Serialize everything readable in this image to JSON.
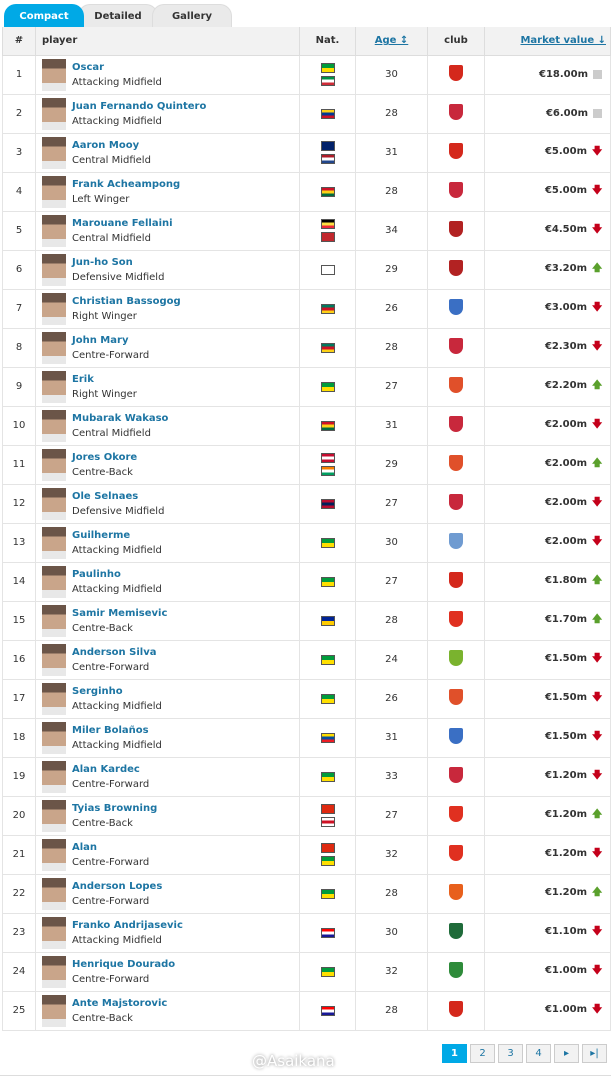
{
  "tabs": [
    "Compact",
    "Detailed",
    "Gallery"
  ],
  "headers": {
    "num": "#",
    "player": "player",
    "nat": "Nat.",
    "age": "Age ↕",
    "club": "club",
    "mv": "Market value ↓"
  },
  "flag_colors": {
    "BR": [
      "#009c3b",
      "#ffdf00"
    ],
    "IT": [
      "#009246",
      "#fff",
      "#ce2b37"
    ],
    "CO": [
      "#fcd116",
      "#003893",
      "#ce1126"
    ],
    "AU": [
      "#012169",
      "#012169"
    ],
    "NL": [
      "#ae1c28",
      "#fff",
      "#21468b"
    ],
    "GH": [
      "#ce1126",
      "#fcd116",
      "#006b3f"
    ],
    "BE": [
      "#000",
      "#fae042",
      "#ed2939"
    ],
    "MA": [
      "#c1272d",
      "#c1272d"
    ],
    "KR": [
      "#fff",
      "#fff"
    ],
    "CM": [
      "#007a5e",
      "#ce1126",
      "#fcd116"
    ],
    "DK": [
      "#c60c30",
      "#fff",
      "#c60c30"
    ],
    "CI": [
      "#f77f00",
      "#fff",
      "#009e60"
    ],
    "NO": [
      "#ba0c2f",
      "#00205b",
      "#ba0c2f"
    ],
    "BA": [
      "#002395",
      "#fecb00"
    ],
    "EC": [
      "#ffdd00",
      "#034ea2",
      "#ed1c24"
    ],
    "CN": [
      "#de2910",
      "#de2910"
    ],
    "EN": [
      "#fff",
      "#ce1124",
      "#fff"
    ],
    "HR": [
      "#ff0000",
      "#fff",
      "#171796"
    ]
  },
  "rows": [
    {
      "n": "1",
      "name": "Oscar",
      "pos": "Attacking Midfield",
      "nat": [
        "BR",
        "IT"
      ],
      "age": "30",
      "club": "#d4281c",
      "mv": "€18.00m",
      "trend": "flat"
    },
    {
      "n": "2",
      "name": "Juan Fernando Quintero",
      "pos": "Attacking Midfield",
      "nat": [
        "CO"
      ],
      "age": "28",
      "club": "#c8283c",
      "mv": "€6.00m",
      "trend": "flat"
    },
    {
      "n": "3",
      "name": "Aaron Mooy",
      "pos": "Central Midfield",
      "nat": [
        "AU",
        "NL"
      ],
      "age": "31",
      "club": "#d4281c",
      "mv": "€5.00m",
      "trend": "down"
    },
    {
      "n": "4",
      "name": "Frank Acheampong",
      "pos": "Left Winger",
      "nat": [
        "GH"
      ],
      "age": "28",
      "club": "#c8283c",
      "mv": "€5.00m",
      "trend": "down"
    },
    {
      "n": "5",
      "name": "Marouane Fellaini",
      "pos": "Central Midfield",
      "nat": [
        "BE",
        "MA"
      ],
      "age": "34",
      "club": "#b22222",
      "mv": "€4.50m",
      "trend": "down"
    },
    {
      "n": "6",
      "name": "Jun-ho Son",
      "pos": "Defensive Midfield",
      "nat": [
        "KR"
      ],
      "age": "29",
      "club": "#b22222",
      "mv": "€3.20m",
      "trend": "up"
    },
    {
      "n": "7",
      "name": "Christian Bassogog",
      "pos": "Right Winger",
      "nat": [
        "CM"
      ],
      "age": "26",
      "club": "#3a6fc4",
      "mv": "€3.00m",
      "trend": "down"
    },
    {
      "n": "8",
      "name": "John Mary",
      "pos": "Centre-Forward",
      "nat": [
        "CM"
      ],
      "age": "28",
      "club": "#c8283c",
      "mv": "€2.30m",
      "trend": "down"
    },
    {
      "n": "9",
      "name": "Erik",
      "pos": "Right Winger",
      "nat": [
        "BR"
      ],
      "age": "27",
      "club": "#e0502a",
      "mv": "€2.20m",
      "trend": "up"
    },
    {
      "n": "10",
      "name": "Mubarak Wakaso",
      "pos": "Central Midfield",
      "nat": [
        "GH"
      ],
      "age": "31",
      "club": "#c8283c",
      "mv": "€2.00m",
      "trend": "down"
    },
    {
      "n": "11",
      "name": "Jores Okore",
      "pos": "Centre-Back",
      "nat": [
        "DK",
        "CI"
      ],
      "age": "29",
      "club": "#e0502a",
      "mv": "€2.00m",
      "trend": "up"
    },
    {
      "n": "12",
      "name": "Ole Selnaes",
      "pos": "Defensive Midfield",
      "nat": [
        "NO"
      ],
      "age": "27",
      "club": "#c8283c",
      "mv": "€2.00m",
      "trend": "down"
    },
    {
      "n": "13",
      "name": "Guilherme",
      "pos": "Attacking Midfield",
      "nat": [
        "BR"
      ],
      "age": "30",
      "club": "#6f9bd1",
      "mv": "€2.00m",
      "trend": "down"
    },
    {
      "n": "14",
      "name": "Paulinho",
      "pos": "Attacking Midfield",
      "nat": [
        "BR"
      ],
      "age": "27",
      "club": "#d4281c",
      "mv": "€1.80m",
      "trend": "up"
    },
    {
      "n": "15",
      "name": "Samir Memisevic",
      "pos": "Centre-Back",
      "nat": [
        "BA"
      ],
      "age": "28",
      "club": "#e03020",
      "mv": "€1.70m",
      "trend": "up"
    },
    {
      "n": "16",
      "name": "Anderson Silva",
      "pos": "Centre-Forward",
      "nat": [
        "BR"
      ],
      "age": "24",
      "club": "#7ab32e",
      "mv": "€1.50m",
      "trend": "down"
    },
    {
      "n": "17",
      "name": "Serginho",
      "pos": "Attacking Midfield",
      "nat": [
        "BR"
      ],
      "age": "26",
      "club": "#e0502a",
      "mv": "€1.50m",
      "trend": "down"
    },
    {
      "n": "18",
      "name": "Miler Bolaños",
      "pos": "Attacking Midfield",
      "nat": [
        "EC"
      ],
      "age": "31",
      "club": "#3a6fc4",
      "mv": "€1.50m",
      "trend": "down"
    },
    {
      "n": "19",
      "name": "Alan Kardec",
      "pos": "Centre-Forward",
      "nat": [
        "BR"
      ],
      "age": "33",
      "club": "#c8283c",
      "mv": "€1.20m",
      "trend": "down"
    },
    {
      "n": "20",
      "name": "Tyias Browning",
      "pos": "Centre-Back",
      "nat": [
        "CN",
        "EN"
      ],
      "age": "27",
      "club": "#e03020",
      "mv": "€1.20m",
      "trend": "up"
    },
    {
      "n": "21",
      "name": "Alan",
      "pos": "Centre-Forward",
      "nat": [
        "CN",
        "BR"
      ],
      "age": "32",
      "club": "#e03020",
      "mv": "€1.20m",
      "trend": "down"
    },
    {
      "n": "22",
      "name": "Anderson Lopes",
      "pos": "Centre-Forward",
      "nat": [
        "BR"
      ],
      "age": "28",
      "club": "#e8601c",
      "mv": "€1.20m",
      "trend": "up"
    },
    {
      "n": "23",
      "name": "Franko Andrijasevic",
      "pos": "Attacking Midfield",
      "nat": [
        "HR"
      ],
      "age": "30",
      "club": "#1f6b3a",
      "mv": "€1.10m",
      "trend": "down"
    },
    {
      "n": "24",
      "name": "Henrique Dourado",
      "pos": "Centre-Forward",
      "nat": [
        "BR"
      ],
      "age": "32",
      "club": "#2e8b3a",
      "mv": "€1.00m",
      "trend": "down"
    },
    {
      "n": "25",
      "name": "Ante Majstorovic",
      "pos": "Centre-Back",
      "nat": [
        "HR"
      ],
      "age": "28",
      "club": "#d4281c",
      "mv": "€1.00m",
      "trend": "down"
    }
  ],
  "pager": [
    "1",
    "2",
    "3",
    "4",
    "▸",
    "▸|"
  ],
  "watermark": "@Asaikana"
}
